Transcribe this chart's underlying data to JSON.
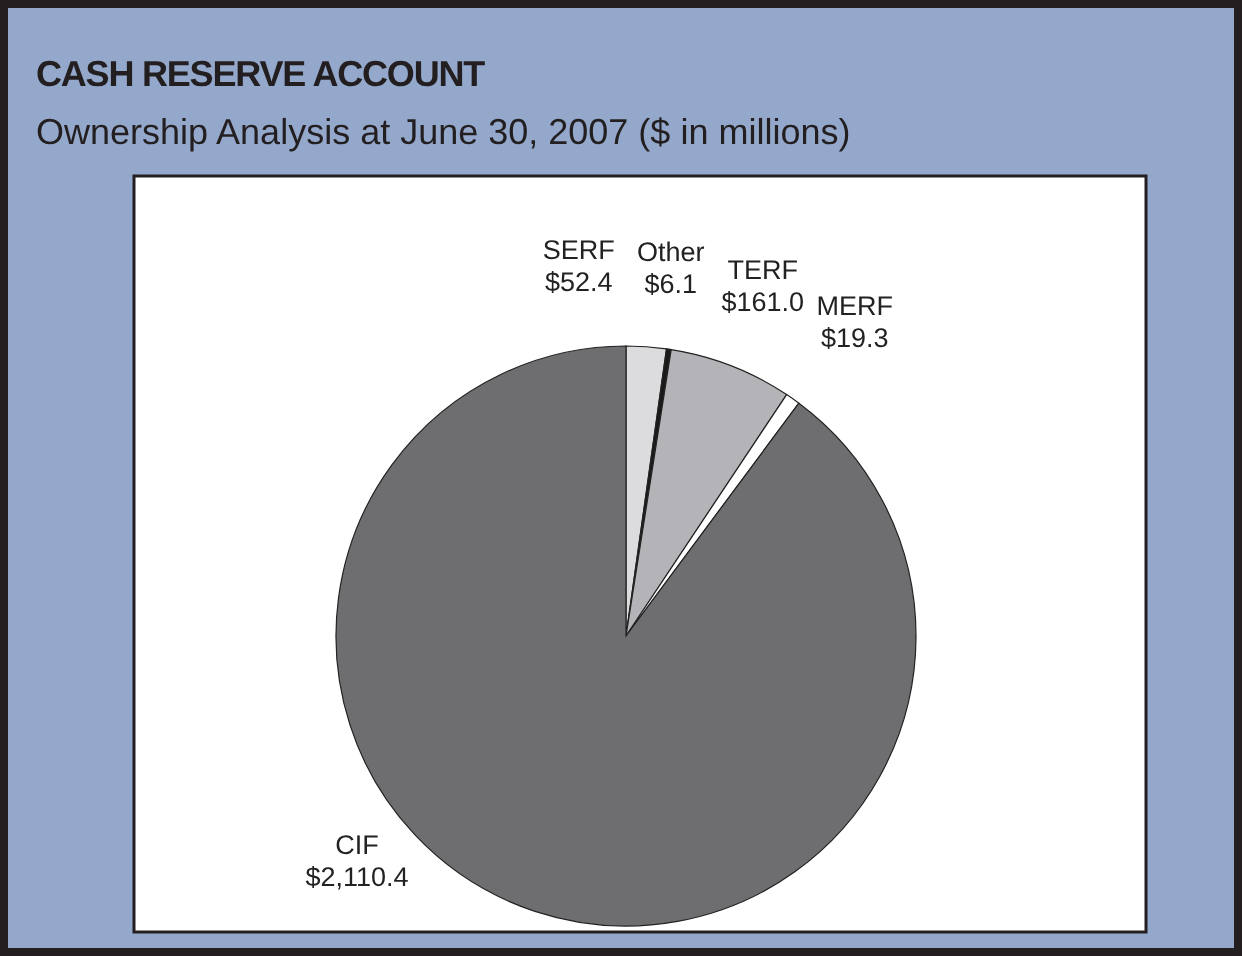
{
  "chart_data": {
    "type": "pie",
    "title": "CASH RESERVE ACCOUNT",
    "subtitle": "Ownership Analysis at June 30, 2007 ($ in millions)",
    "categories": [
      "SERF",
      "Other",
      "TERF",
      "MERF",
      "CIF"
    ],
    "values": [
      52.4,
      6.1,
      161.0,
      19.3,
      2110.4
    ],
    "value_labels": [
      "$52.4",
      "$6.1",
      "$161.0",
      "$19.3",
      "$2,110.4"
    ],
    "colors": [
      "#dcdcde",
      "#1a1a1a",
      "#b4b4b8",
      "#ffffff",
      "#6e6e70"
    ]
  }
}
